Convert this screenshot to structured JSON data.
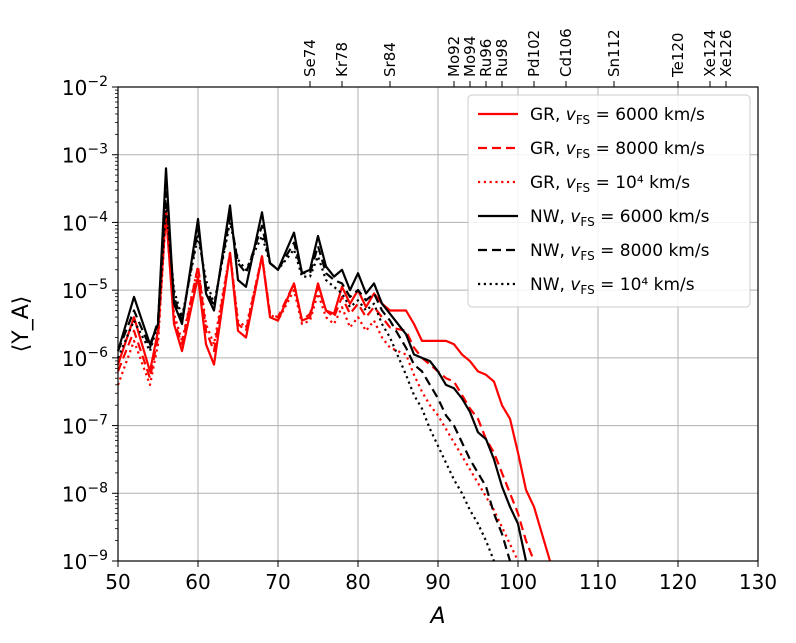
{
  "chart_data": {
    "type": "line",
    "title": "",
    "xlabel": "A",
    "ylabel": "⟨Y_A⟩",
    "xlim": [
      50,
      130
    ],
    "ylim_log10": [
      -9,
      -2
    ],
    "x_ticks": [
      50,
      60,
      70,
      80,
      90,
      100,
      110,
      120,
      130
    ],
    "y_ticks": [
      {
        "exp": -9,
        "label": "10",
        "sup": "−9"
      },
      {
        "exp": -8,
        "label": "10",
        "sup": "−8"
      },
      {
        "exp": -7,
        "label": "10",
        "sup": "−7"
      },
      {
        "exp": -6,
        "label": "10",
        "sup": "−6"
      },
      {
        "exp": -5,
        "label": "10",
        "sup": "−5"
      },
      {
        "exp": -4,
        "label": "10",
        "sup": "−4"
      },
      {
        "exp": -3,
        "label": "10",
        "sup": "−3"
      },
      {
        "exp": -2,
        "label": "10",
        "sup": "−2"
      }
    ],
    "grid": true,
    "legend_position": "top-right",
    "top_axis_isotopes": [
      {
        "label": "Se74",
        "A": 74
      },
      {
        "label": "Kr78",
        "A": 78
      },
      {
        "label": "Sr84",
        "A": 84
      },
      {
        "label": "Mo92",
        "A": 92
      },
      {
        "label": "Mo94",
        "A": 94
      },
      {
        "label": "Ru96",
        "A": 96
      },
      {
        "label": "Ru98",
        "A": 98
      },
      {
        "label": "Pd102",
        "A": 102
      },
      {
        "label": "Cd106",
        "A": 106
      },
      {
        "label": "Sn112",
        "A": 112
      },
      {
        "label": "Te120",
        "A": 120
      },
      {
        "label": "Xe124",
        "A": 124
      },
      {
        "label": "Xe126",
        "A": 126
      }
    ],
    "series": [
      {
        "name": "GR, v_FS = 6000 km/s",
        "legend_prefix": "GR, ",
        "legend_suffix": " = 6000 km/s",
        "color": "#ff0000",
        "dash": "solid",
        "x": [
          50,
          52,
          54,
          55,
          56,
          57,
          58,
          60,
          61,
          62,
          64,
          65,
          66,
          68,
          69,
          70,
          72,
          73,
          74,
          75,
          76,
          77,
          78,
          79,
          80,
          81,
          82,
          83,
          84,
          86,
          87,
          88,
          90,
          91,
          92,
          93,
          94,
          95,
          96,
          97,
          98,
          99,
          100,
          101,
          102,
          103,
          104
        ],
        "log10y": [
          -6.1,
          -5.4,
          -6.2,
          -5.6,
          -3.85,
          -5.5,
          -5.9,
          -4.8,
          -5.8,
          -6.1,
          -4.45,
          -5.6,
          -5.7,
          -4.5,
          -5.4,
          -5.45,
          -4.9,
          -5.45,
          -5.4,
          -4.9,
          -5.3,
          -5.35,
          -4.95,
          -5.2,
          -5.0,
          -5.25,
          -5.05,
          -5.2,
          -5.3,
          -5.3,
          -5.5,
          -5.75,
          -5.75,
          -5.75,
          -5.8,
          -5.95,
          -6.05,
          -6.2,
          -6.25,
          -6.35,
          -6.7,
          -6.9,
          -7.4,
          -7.95,
          -8.2,
          -8.6,
          -9.0
        ]
      },
      {
        "name": "GR, v_FS = 8000 km/s",
        "legend_prefix": "GR, ",
        "legend_suffix": " = 8000 km/s",
        "color": "#ff0000",
        "dash": "dashed",
        "x": [
          50,
          52,
          54,
          55,
          56,
          57,
          58,
          60,
          61,
          62,
          64,
          65,
          66,
          68,
          69,
          70,
          72,
          73,
          74,
          75,
          76,
          77,
          78,
          79,
          80,
          81,
          82,
          83,
          84,
          86,
          87,
          88,
          90,
          91,
          92,
          93,
          94,
          95,
          96,
          97,
          98,
          99,
          100,
          101,
          102
        ],
        "log10y": [
          -6.2,
          -5.6,
          -6.3,
          -5.7,
          -3.85,
          -5.45,
          -5.8,
          -4.65,
          -5.6,
          -5.9,
          -4.45,
          -5.5,
          -5.6,
          -4.5,
          -5.35,
          -5.4,
          -4.9,
          -5.45,
          -5.35,
          -4.95,
          -5.3,
          -5.4,
          -5.1,
          -5.35,
          -5.2,
          -5.4,
          -5.25,
          -5.4,
          -5.55,
          -5.6,
          -5.85,
          -6.0,
          -6.2,
          -6.3,
          -6.35,
          -6.55,
          -6.75,
          -6.9,
          -7.2,
          -7.4,
          -7.7,
          -8.0,
          -8.3,
          -8.7,
          -9.0
        ]
      },
      {
        "name": "GR, v_FS = 10^4 km/s",
        "legend_prefix": "GR, ",
        "legend_suffix": " = 10⁴ km/s",
        "color": "#ff0000",
        "dash": "dotted",
        "x": [
          50,
          52,
          54,
          55,
          56,
          57,
          58,
          60,
          61,
          62,
          64,
          65,
          66,
          68,
          69,
          70,
          72,
          73,
          74,
          75,
          76,
          77,
          78,
          79,
          80,
          81,
          82,
          83,
          84,
          86,
          87,
          88,
          89,
          90,
          91,
          92,
          93,
          94,
          95,
          96,
          97,
          98,
          99,
          100
        ],
        "log10y": [
          -6.4,
          -5.75,
          -6.4,
          -5.8,
          -3.85,
          -5.35,
          -5.75,
          -4.65,
          -5.5,
          -5.8,
          -4.45,
          -5.45,
          -5.55,
          -4.5,
          -5.35,
          -5.45,
          -5.0,
          -5.5,
          -5.45,
          -5.05,
          -5.4,
          -5.5,
          -5.25,
          -5.55,
          -5.4,
          -5.6,
          -5.45,
          -5.7,
          -5.85,
          -5.95,
          -6.25,
          -6.5,
          -6.7,
          -6.85,
          -7.05,
          -7.25,
          -7.45,
          -7.65,
          -7.85,
          -8.05,
          -8.25,
          -8.5,
          -8.75,
          -9.0
        ]
      },
      {
        "name": "NW, v_FS = 6000 km/s",
        "legend_prefix": "NW, ",
        "legend_suffix": " = 6000 km/s",
        "color": "#000000",
        "dash": "solid",
        "x": [
          50,
          52,
          54,
          55,
          56,
          57,
          58,
          60,
          61,
          62,
          64,
          65,
          66,
          68,
          69,
          70,
          72,
          73,
          74,
          75,
          76,
          77,
          78,
          79,
          80,
          81,
          82,
          83,
          84,
          86,
          87,
          88,
          89,
          90,
          91,
          92,
          93,
          94,
          95,
          96,
          97,
          98,
          99,
          100,
          101
        ],
        "log10y": [
          -5.9,
          -5.1,
          -5.8,
          -5.5,
          -3.2,
          -5.2,
          -5.5,
          -3.95,
          -5.05,
          -5.3,
          -3.75,
          -4.85,
          -4.95,
          -3.85,
          -4.6,
          -4.7,
          -4.15,
          -4.75,
          -4.7,
          -4.2,
          -4.65,
          -4.8,
          -4.7,
          -5.0,
          -4.75,
          -5.05,
          -4.9,
          -5.2,
          -5.35,
          -5.65,
          -5.95,
          -6.0,
          -6.05,
          -6.2,
          -6.4,
          -6.45,
          -6.6,
          -6.8,
          -7.1,
          -7.2,
          -7.5,
          -7.9,
          -8.2,
          -8.45,
          -9.0
        ]
      },
      {
        "name": "NW, v_FS = 8000 km/s",
        "legend_prefix": "NW, ",
        "legend_suffix": " = 8000 km/s",
        "color": "#000000",
        "dash": "dashed",
        "x": [
          50,
          52,
          54,
          55,
          56,
          57,
          58,
          60,
          61,
          62,
          64,
          65,
          66,
          68,
          69,
          70,
          72,
          73,
          74,
          75,
          76,
          77,
          78,
          79,
          80,
          81,
          82,
          83,
          84,
          86,
          87,
          88,
          89,
          90,
          91,
          92,
          93,
          94,
          95,
          96,
          97,
          98,
          99
        ],
        "log10y": [
          -5.9,
          -5.3,
          -5.85,
          -5.45,
          -3.55,
          -5.1,
          -5.45,
          -4.1,
          -4.95,
          -5.25,
          -3.9,
          -4.6,
          -4.75,
          -4.05,
          -4.6,
          -4.7,
          -4.3,
          -4.75,
          -4.75,
          -4.35,
          -4.75,
          -4.85,
          -4.9,
          -5.1,
          -5.0,
          -5.15,
          -5.05,
          -5.3,
          -5.45,
          -5.85,
          -6.1,
          -6.2,
          -6.4,
          -6.6,
          -6.85,
          -7.0,
          -7.25,
          -7.5,
          -7.7,
          -7.9,
          -8.3,
          -8.6,
          -9.0
        ]
      },
      {
        "name": "NW, v_FS = 10^4 km/s",
        "legend_prefix": "NW, ",
        "legend_suffix": " = 10⁴ km/s",
        "color": "#000000",
        "dash": "dotted",
        "x": [
          50,
          52,
          54,
          55,
          56,
          57,
          58,
          60,
          61,
          62,
          64,
          65,
          66,
          68,
          69,
          70,
          72,
          73,
          74,
          75,
          76,
          77,
          78,
          79,
          80,
          81,
          82,
          83,
          84,
          86,
          87,
          88,
          89,
          90,
          91,
          92,
          93,
          94,
          95,
          96,
          97
        ],
        "log10y": [
          -6.0,
          -5.45,
          -5.9,
          -5.5,
          -3.75,
          -5.0,
          -5.4,
          -4.2,
          -4.85,
          -5.2,
          -4.0,
          -4.55,
          -4.7,
          -4.2,
          -4.6,
          -4.7,
          -4.4,
          -4.8,
          -4.8,
          -4.5,
          -4.85,
          -4.95,
          -5.05,
          -5.25,
          -5.15,
          -5.3,
          -5.2,
          -5.5,
          -5.7,
          -6.25,
          -6.55,
          -6.75,
          -7.05,
          -7.3,
          -7.55,
          -7.8,
          -8.0,
          -8.25,
          -8.45,
          -8.7,
          -9.0
        ]
      }
    ]
  }
}
